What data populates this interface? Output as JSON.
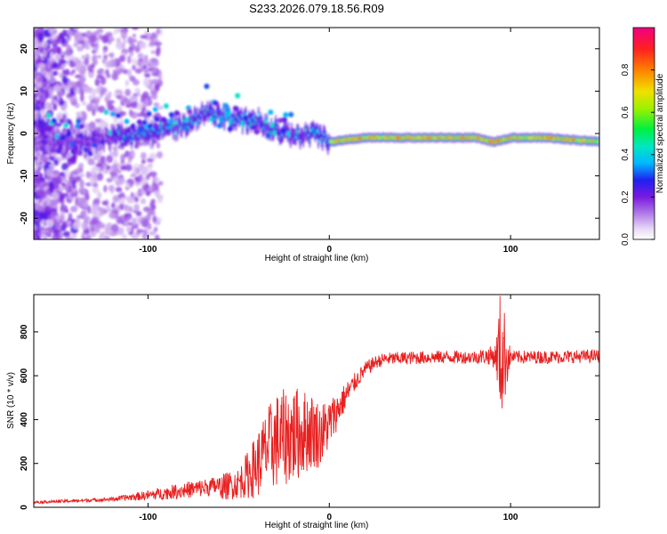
{
  "figure_title": "S233.2026.079.18.56.R09",
  "colorbar": {
    "label": "Normalized spectral amplitude",
    "range": [
      0.0,
      1.0
    ],
    "ticks": [
      "0.0",
      "0.2",
      "0.4",
      "0.6",
      "0.8"
    ],
    "tick_values": [
      0.0,
      0.2,
      0.4,
      0.6,
      0.8
    ]
  },
  "chart_data": [
    {
      "type": "heatmap",
      "title": "",
      "xlabel": "Height of straight line (km)",
      "ylabel": "Frequency (Hz)",
      "xlim": [
        -163,
        149
      ],
      "ylim": [
        -25,
        25
      ],
      "xticks": [
        "-100",
        "0",
        "100"
      ],
      "xtick_values": [
        -100,
        0,
        100
      ],
      "yticks": [
        "-20",
        "-10",
        "0",
        "10",
        "20"
      ],
      "ytick_values": [
        -20,
        -10,
        0,
        10,
        20
      ],
      "ridge": {
        "description_points_x": [
          -140,
          -120,
          -100,
          -80,
          -70,
          -60,
          -50,
          -40,
          -30,
          -20,
          -10,
          0,
          20,
          40,
          60,
          80,
          90,
          100,
          120,
          149
        ],
        "description_points_freq": [
          -2,
          -1,
          0,
          2,
          5,
          4,
          3,
          3,
          1,
          -1,
          0,
          -2,
          -1,
          -1,
          -1,
          -1,
          -2,
          -1,
          -1,
          -2
        ],
        "peak_amplitude_region_x": [
          -5,
          149
        ]
      }
    },
    {
      "type": "line",
      "title": "",
      "xlabel": "Height of straight line (km)",
      "ylabel": "SNR (10 * v/v)",
      "xlim": [
        -163,
        149
      ],
      "ylim": [
        0,
        970
      ],
      "xticks": [
        "-100",
        "0",
        "100"
      ],
      "xtick_values": [
        -100,
        0,
        100
      ],
      "yticks": [
        "0",
        "200",
        "400",
        "600",
        "800"
      ],
      "ytick_values": [
        0,
        200,
        400,
        600,
        800
      ],
      "line_color": "#e82020",
      "series": [
        {
          "name": "SNR",
          "envelope_x": [
            -163,
            -140,
            -120,
            -100,
            -80,
            -60,
            -50,
            -40,
            -35,
            -30,
            -25,
            -20,
            -15,
            -10,
            -5,
            0,
            5,
            10,
            15,
            20,
            25,
            30,
            40,
            60,
            80,
            88,
            92,
            94,
            96,
            100,
            120,
            149
          ],
          "envelope_mean": [
            22,
            28,
            35,
            50,
            70,
            90,
            110,
            190,
            260,
            300,
            320,
            330,
            340,
            350,
            330,
            380,
            450,
            520,
            580,
            630,
            660,
            675,
            680,
            685,
            685,
            690,
            690,
            690,
            690,
            685,
            685,
            690
          ],
          "noise_amplitude": [
            8,
            10,
            12,
            30,
            50,
            60,
            70,
            150,
            180,
            220,
            220,
            230,
            200,
            180,
            150,
            120,
            80,
            60,
            40,
            35,
            30,
            30,
            30,
            30,
            30,
            40,
            60,
            300,
            250,
            30,
            30,
            30
          ]
        }
      ]
    }
  ]
}
